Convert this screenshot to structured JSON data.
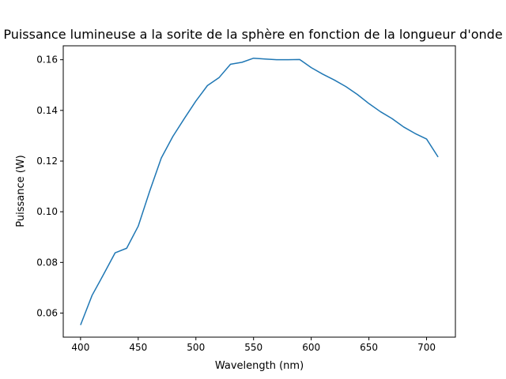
{
  "chart_data": {
    "type": "line",
    "title": "Puissance lumineuse a la sorite de la sphère en fonction de la longueur d'onde",
    "xlabel": "Wavelength (nm)",
    "ylabel": "Puissance (W)",
    "xlim": [
      385,
      725
    ],
    "ylim": [
      0.0505,
      0.1655
    ],
    "grid": false,
    "line_color": "#1f77b4",
    "x_ticks": [
      400,
      450,
      500,
      550,
      600,
      650,
      700
    ],
    "x_tick_labels": [
      "400",
      "450",
      "500",
      "550",
      "600",
      "650",
      "700"
    ],
    "y_ticks": [
      0.06,
      0.08,
      0.1,
      0.12,
      0.14,
      0.16
    ],
    "y_tick_labels": [
      "0.06",
      "0.08",
      "0.10",
      "0.12",
      "0.14",
      "0.16"
    ],
    "series": [
      {
        "x": [
          400,
          410,
          420,
          430,
          440,
          450,
          460,
          470,
          480,
          490,
          500,
          510,
          520,
          530,
          540,
          550,
          560,
          570,
          580,
          590,
          600,
          610,
          620,
          630,
          640,
          650,
          660,
          670,
          680,
          690,
          700,
          710
        ],
        "y": [
          0.0553,
          0.067,
          0.0753,
          0.0838,
          0.0856,
          0.0943,
          0.1082,
          0.1212,
          0.1297,
          0.1368,
          0.1437,
          0.1498,
          0.1529,
          0.1582,
          0.159,
          0.1606,
          0.1603,
          0.16,
          0.16,
          0.1601,
          0.1569,
          0.1543,
          0.152,
          0.1494,
          0.1463,
          0.1427,
          0.1395,
          0.1368,
          0.1335,
          0.1309,
          0.1287,
          0.1216
        ]
      }
    ]
  }
}
